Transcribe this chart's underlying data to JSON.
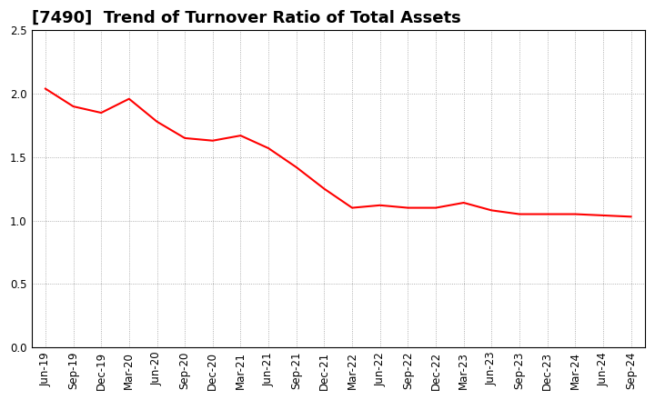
{
  "title": "[7490]  Trend of Turnover Ratio of Total Assets",
  "line_color": "#FF0000",
  "line_width": 1.5,
  "background_color": "#FFFFFF",
  "grid_color": "#999999",
  "ylim": [
    0.0,
    2.5
  ],
  "yticks": [
    0.0,
    0.5,
    1.0,
    1.5,
    2.0,
    2.5
  ],
  "values": [
    2.04,
    1.9,
    1.85,
    1.96,
    1.78,
    1.65,
    1.63,
    1.67,
    1.57,
    1.42,
    1.25,
    1.1,
    1.12,
    1.1,
    1.1,
    1.14,
    1.08,
    1.05,
    1.05,
    1.05,
    1.04,
    1.03
  ],
  "xtick_labels": [
    "Jun-19",
    "Sep-19",
    "Dec-19",
    "Mar-20",
    "Jun-20",
    "Sep-20",
    "Dec-20",
    "Mar-21",
    "Jun-21",
    "Sep-21",
    "Dec-21",
    "Mar-22",
    "Jun-22",
    "Sep-22",
    "Dec-22",
    "Mar-23",
    "Jun-23",
    "Sep-23",
    "Dec-23",
    "Mar-24",
    "Jun-24",
    "Sep-24"
  ],
  "title_fontsize": 13,
  "tick_fontsize": 8.5
}
